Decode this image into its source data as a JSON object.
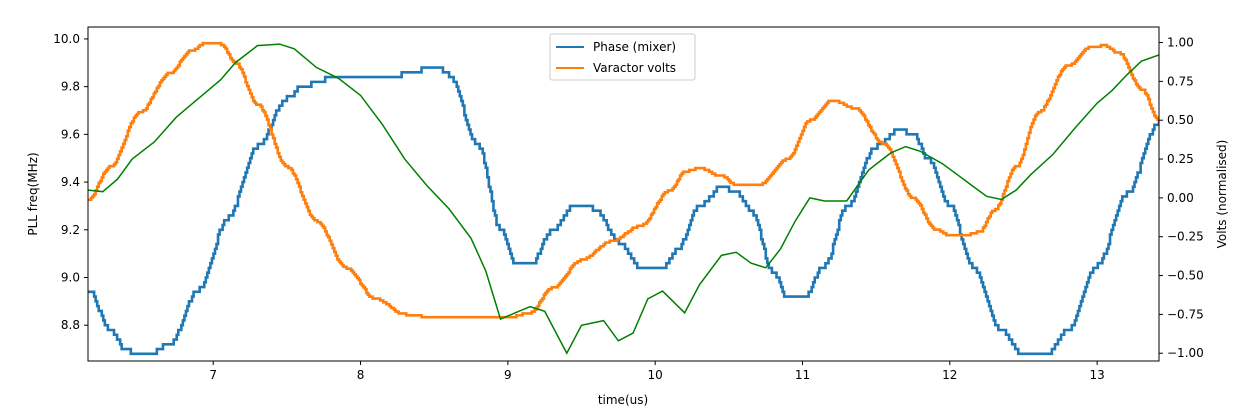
{
  "chart_data": {
    "type": "line",
    "title": "",
    "xlabel": "time(us)",
    "ylabel": "PLL freq(MHz)",
    "ylabel_right": "Volts (normalised)",
    "xlim": [
      6.15,
      13.42
    ],
    "ylim": [
      8.65,
      10.05
    ],
    "ylim_right": [
      -1.05,
      1.1
    ],
    "x_ticks": [
      7,
      8,
      9,
      10,
      11,
      12,
      13
    ],
    "y_ticks": [
      8.8,
      9.0,
      9.2,
      9.4,
      9.6,
      9.8,
      10.0
    ],
    "y_tick_labels": [
      "8.8",
      "9.0",
      "9.2",
      "9.4",
      "9.6",
      "9.8",
      "10.0"
    ],
    "y_ticks_right": [
      -1.0,
      -0.75,
      -0.5,
      -0.25,
      0.0,
      0.25,
      0.5,
      0.75,
      1.0
    ],
    "y_tick_labels_right": [
      "−1.00",
      "−0.75",
      "−0.50",
      "−0.25",
      "0.00",
      "0.25",
      "0.50",
      "0.75",
      "1.00"
    ],
    "grid": false,
    "legend_position": "upper-center",
    "series": [
      {
        "name": "Phase (mixer)",
        "axis": "left",
        "color": "#1f77b4",
        "step": 0.02,
        "x": [
          6.15,
          6.3,
          6.4,
          6.5,
          6.55,
          6.7,
          6.9,
          7.1,
          7.3,
          7.5,
          7.6,
          7.75,
          8.0,
          8.2,
          8.35,
          8.5,
          8.6,
          8.8,
          8.95,
          9.05,
          9.15,
          9.3,
          9.45,
          9.55,
          9.6,
          9.75,
          9.9,
          10.05,
          10.15,
          10.3,
          10.45,
          10.55,
          10.65,
          10.8,
          10.9,
          11.0,
          11.15,
          11.3,
          11.5,
          11.65,
          11.75,
          11.85,
          12.0,
          12.15,
          12.35,
          12.5,
          12.65,
          12.8,
          13.0,
          13.2,
          13.42
        ],
        "y": [
          8.95,
          8.78,
          8.7,
          8.67,
          8.67,
          8.72,
          8.95,
          9.25,
          9.55,
          9.75,
          9.8,
          9.83,
          9.83,
          9.84,
          9.86,
          9.89,
          9.85,
          9.55,
          9.2,
          9.06,
          9.05,
          9.2,
          9.3,
          9.3,
          9.28,
          9.15,
          9.04,
          9.04,
          9.12,
          9.3,
          9.38,
          9.36,
          9.28,
          9.02,
          8.91,
          8.91,
          9.05,
          9.3,
          9.55,
          9.62,
          9.6,
          9.5,
          9.3,
          9.05,
          8.78,
          8.67,
          8.67,
          8.78,
          9.05,
          9.35,
          9.65
        ]
      },
      {
        "name": "Varactor volts",
        "axis": "right",
        "color": "#ff7f0e",
        "step": 0.012,
        "x": [
          6.15,
          6.3,
          6.5,
          6.7,
          6.85,
          6.95,
          7.05,
          7.15,
          7.3,
          7.5,
          7.7,
          7.9,
          8.1,
          8.3,
          8.5,
          8.7,
          8.9,
          9.0,
          9.15,
          9.3,
          9.5,
          9.7,
          9.9,
          10.1,
          10.2,
          10.3,
          10.45,
          10.55,
          10.7,
          10.9,
          11.05,
          11.2,
          11.35,
          11.55,
          11.75,
          11.9,
          12.0,
          12.1,
          12.2,
          12.3,
          12.45,
          12.6,
          12.8,
          12.95,
          13.05,
          13.15,
          13.3,
          13.42
        ],
        "y": [
          -0.01,
          0.2,
          0.55,
          0.8,
          0.95,
          1.0,
          0.99,
          0.87,
          0.6,
          0.2,
          -0.15,
          -0.45,
          -0.65,
          -0.75,
          -0.77,
          -0.77,
          -0.77,
          -0.77,
          -0.74,
          -0.58,
          -0.4,
          -0.28,
          -0.18,
          0.05,
          0.17,
          0.19,
          0.14,
          0.08,
          0.08,
          0.25,
          0.5,
          0.63,
          0.58,
          0.35,
          0.0,
          -0.2,
          -0.24,
          -0.24,
          -0.22,
          -0.08,
          0.2,
          0.55,
          0.85,
          0.97,
          0.98,
          0.93,
          0.7,
          0.5
        ]
      },
      {
        "name": "",
        "axis": "right",
        "color": "#008000",
        "step": 0,
        "x": [
          6.15,
          6.25,
          6.35,
          6.45,
          6.6,
          6.75,
          6.9,
          7.05,
          7.15,
          7.3,
          7.45,
          7.55,
          7.7,
          7.85,
          8.0,
          8.15,
          8.3,
          8.45,
          8.6,
          8.75,
          8.85,
          8.95,
          9.05,
          9.15,
          9.25,
          9.4,
          9.5,
          9.65,
          9.75,
          9.85,
          9.95,
          10.05,
          10.2,
          10.3,
          10.45,
          10.55,
          10.65,
          10.75,
          10.85,
          10.95,
          11.05,
          11.15,
          11.3,
          11.45,
          11.6,
          11.7,
          11.8,
          11.95,
          12.05,
          12.15,
          12.25,
          12.35,
          12.45,
          12.55,
          12.7,
          12.85,
          13.0,
          13.1,
          13.2,
          13.3,
          13.42
        ],
        "y": [
          0.05,
          0.04,
          0.12,
          0.25,
          0.36,
          0.52,
          0.64,
          0.76,
          0.87,
          0.98,
          0.99,
          0.96,
          0.84,
          0.77,
          0.66,
          0.47,
          0.25,
          0.08,
          -0.07,
          -0.26,
          -0.47,
          -0.78,
          -0.74,
          -0.7,
          -0.73,
          -1.0,
          -0.82,
          -0.79,
          -0.92,
          -0.87,
          -0.65,
          -0.6,
          -0.74,
          -0.56,
          -0.37,
          -0.35,
          -0.42,
          -0.45,
          -0.33,
          -0.15,
          0.0,
          -0.02,
          -0.02,
          0.18,
          0.29,
          0.33,
          0.3,
          0.22,
          0.15,
          0.08,
          0.01,
          -0.01,
          0.05,
          0.15,
          0.28,
          0.45,
          0.61,
          0.69,
          0.79,
          0.88,
          0.92
        ]
      }
    ]
  }
}
